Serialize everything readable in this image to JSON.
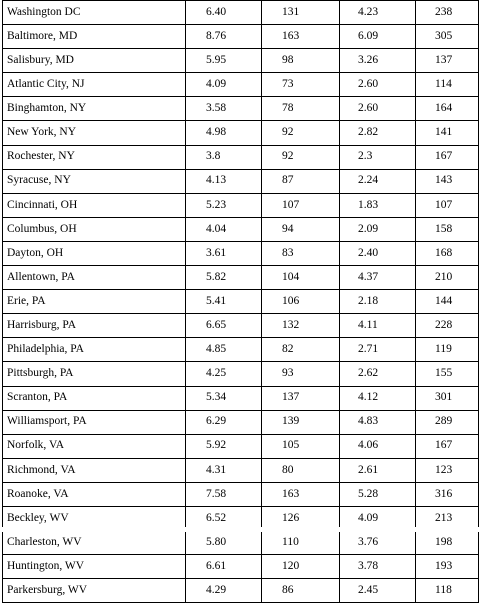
{
  "table": {
    "rows": [
      [
        "Washington DC",
        "6.40",
        "131",
        "4.23",
        "238"
      ],
      [
        "Baltimore, MD",
        "8.76",
        "163",
        "6.09",
        "305"
      ],
      [
        "Salisbury, MD",
        "5.95",
        "98",
        "3.26",
        "137"
      ],
      [
        "Atlantic City, NJ",
        "4.09",
        "73",
        "2.60",
        "114"
      ],
      [
        "Binghamton, NY",
        "3.58",
        "78",
        "2.60",
        "164"
      ],
      [
        "New York, NY",
        "4.98",
        "92",
        "2.82",
        "141"
      ],
      [
        "Rochester, NY",
        "3.8",
        "92",
        "2.3",
        "167"
      ],
      [
        "Syracuse, NY",
        "4.13",
        "87",
        "2.24",
        "143"
      ],
      [
        "Cincinnati, OH",
        "5.23",
        "107",
        "1.83",
        "107"
      ],
      [
        "Columbus, OH",
        "4.04",
        "94",
        "2.09",
        "158"
      ],
      [
        "Dayton, OH",
        "3.61",
        "83",
        "2.40",
        "168"
      ],
      [
        "Allentown, PA",
        "5.82",
        "104",
        "4.37",
        "210"
      ],
      [
        "Erie, PA",
        "5.41",
        "106",
        "2.18",
        "144"
      ],
      [
        "Harrisburg, PA",
        "6.65",
        "132",
        "4.11",
        "228"
      ],
      [
        "Philadelphia, PA",
        "4.85",
        "82",
        "2.71",
        "119"
      ],
      [
        "Pittsburgh, PA",
        "4.25",
        "93",
        "2.62",
        "155"
      ],
      [
        "Scranton, PA",
        "5.34",
        "137",
        "4.12",
        "301"
      ],
      [
        "Williamsport, PA",
        "6.29",
        "139",
        "4.83",
        "289"
      ],
      [
        "Norfolk, VA",
        "5.92",
        "105",
        "4.06",
        "167"
      ],
      [
        "Richmond, VA",
        "4.31",
        "80",
        "2.61",
        "123"
      ],
      [
        "Roanoke, VA",
        "7.58",
        "163",
        "5.28",
        "316"
      ],
      [
        "Beckley, WV",
        "6.52",
        "126",
        "4.09",
        "213"
      ],
      [
        "Charleston, WV",
        "5.80",
        "110",
        "3.76",
        "198"
      ],
      [
        "Huntington, WV",
        "6.61",
        "120",
        "3.78",
        "193"
      ],
      [
        "Parkersburg, WV",
        "4.29",
        "86",
        "2.45",
        "118"
      ]
    ]
  }
}
